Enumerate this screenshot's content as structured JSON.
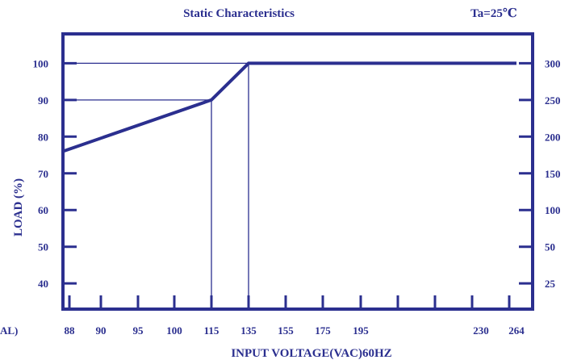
{
  "chart_data": {
    "type": "line",
    "title": "Static Characteristics",
    "condition": "Ta=25℃",
    "xlabel": "INPUT VOLTAGE(VAC)60HZ",
    "ylabel": "LOAD (%)",
    "x_edge_label": "AL)",
    "x_tick_labels": [
      "88",
      "90",
      "95",
      "100",
      "115",
      "135",
      "155",
      "175",
      "195",
      "230",
      "264"
    ],
    "y_left_ticks": [
      40,
      50,
      60,
      70,
      80,
      90,
      100
    ],
    "y_left_range": [
      33,
      108
    ],
    "y_right_tick_labels": [
      "25",
      "50",
      "100",
      "150",
      "200",
      "250",
      "300"
    ],
    "grid": false,
    "series": [
      {
        "x": [
          88,
          115,
          135,
          264
        ],
        "y": [
          76,
          90,
          100,
          100
        ]
      }
    ],
    "reference_lines": [
      {
        "y": 100
      },
      {
        "y": 90
      },
      {
        "x": 115
      },
      {
        "x": 135
      }
    ]
  },
  "colors": {
    "ink": "#2b2f8f",
    "background": "#ffffff"
  }
}
